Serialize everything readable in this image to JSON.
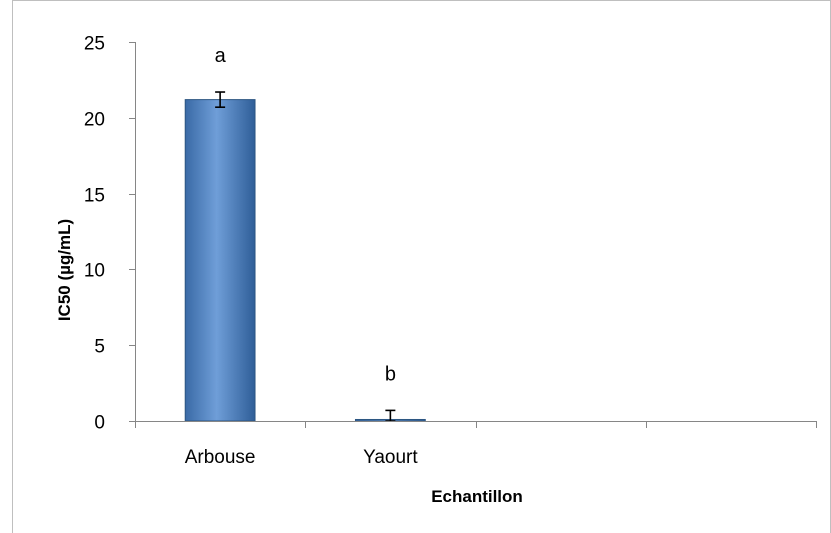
{
  "chart_data": {
    "type": "bar",
    "categories": [
      "Arbouse",
      "Yaourt",
      "",
      ""
    ],
    "values": [
      21.2,
      0.1,
      null,
      null
    ],
    "error_bars": [
      0.5,
      0.6,
      null,
      null
    ],
    "significance_labels": [
      "a",
      "b",
      "",
      ""
    ],
    "xlabel": "Echantillon",
    "ylabel": "IC50 (µg/mL)",
    "ylim": [
      0,
      25
    ],
    "yticks": [
      "0",
      "5",
      "10",
      "15",
      "20",
      "25"
    ],
    "grid": false,
    "legend": "none",
    "bar_color": "#4f81bd",
    "bar_edge_color": "#2c5582"
  }
}
